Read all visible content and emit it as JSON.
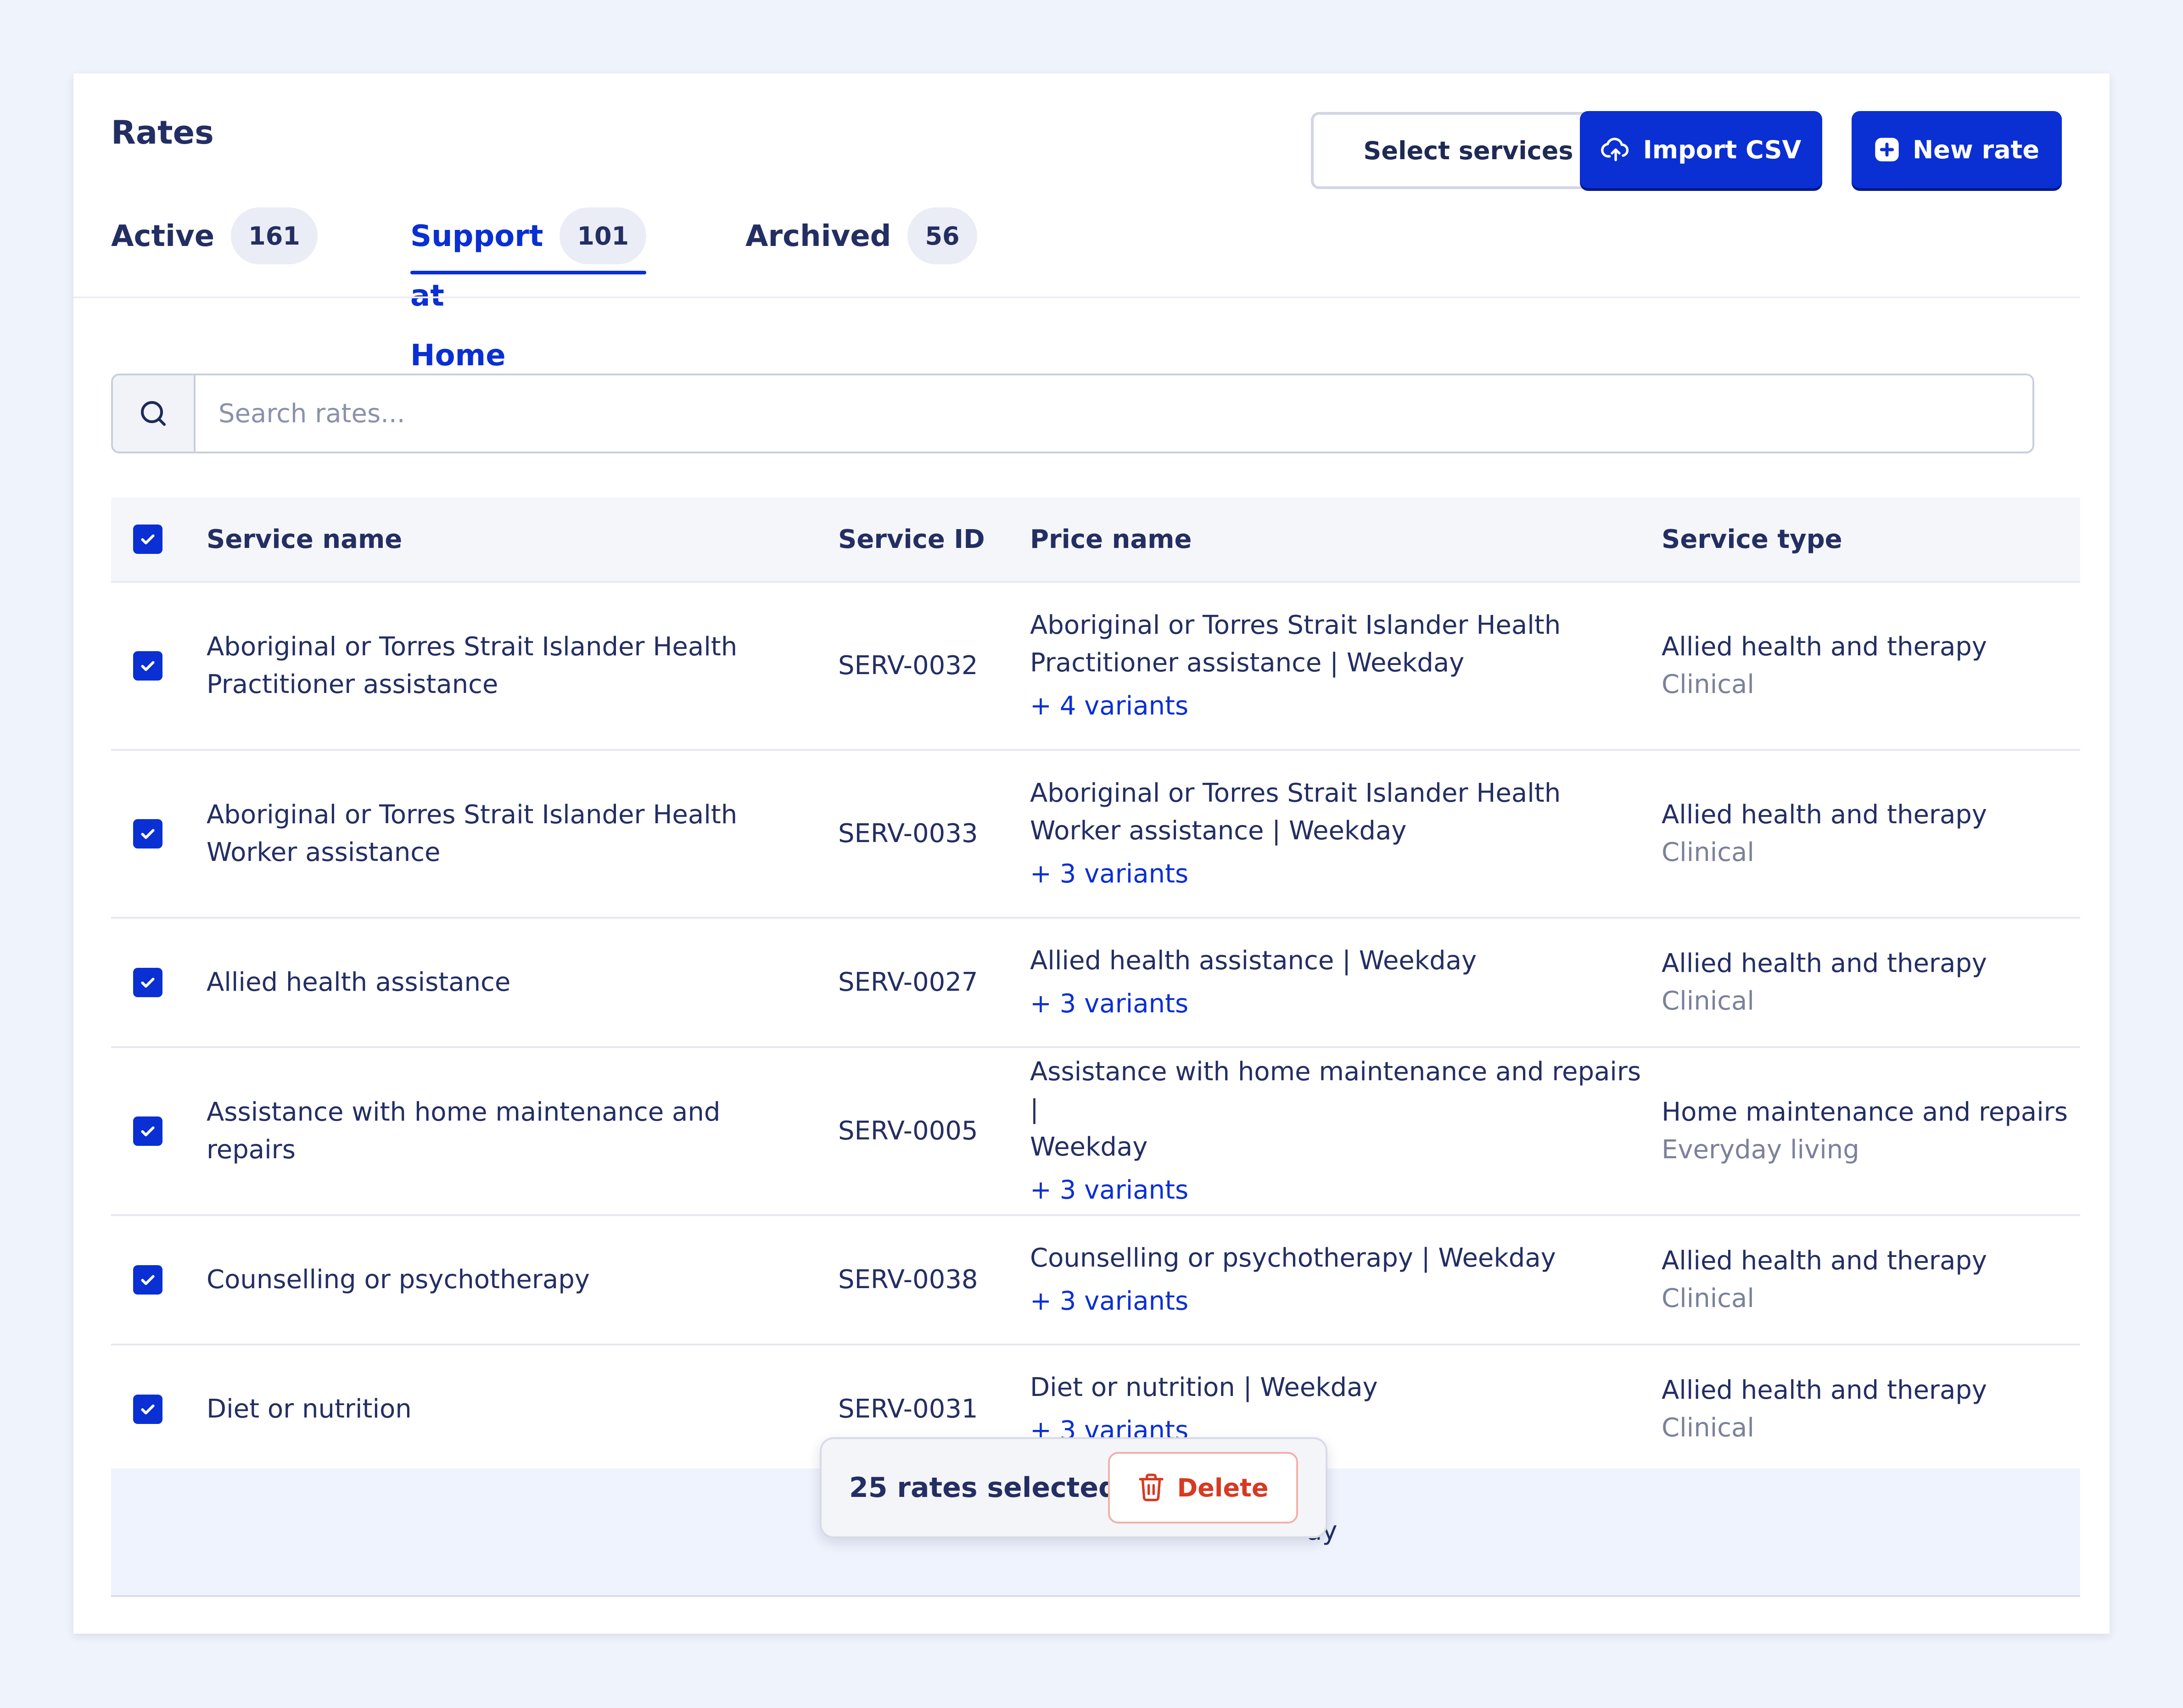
{
  "page": {
    "title": "Rates"
  },
  "header_actions": {
    "select_services_label": "Select services",
    "import_csv_label": "Import CSV",
    "new_rate_label": "New rate"
  },
  "tabs": [
    {
      "label": "Active",
      "count": "161",
      "selected": false
    },
    {
      "label": "Support at Home",
      "count": "101",
      "selected": true
    },
    {
      "label": "Archived",
      "count": "56",
      "selected": false
    }
  ],
  "search": {
    "placeholder": "Search rates...",
    "value": ""
  },
  "table": {
    "columns": {
      "service_name": "Service name",
      "service_id": "Service ID",
      "price_name": "Price name",
      "service_type": "Service type"
    },
    "header_checked": true,
    "rows": [
      {
        "checked": true,
        "service_name": [
          "Aboriginal or Torres Strait Islander Health",
          "Practitioner assistance"
        ],
        "service_id": "SERV-0032",
        "price_name": [
          "Aboriginal or Torres Strait Islander Health",
          "Practitioner assistance | Weekday"
        ],
        "variants": "+ 4 variants",
        "service_type": "Allied health and therapy",
        "service_subtype": "Clinical"
      },
      {
        "checked": true,
        "service_name": [
          "Aboriginal or Torres Strait Islander Health",
          "Worker assistance"
        ],
        "service_id": "SERV-0033",
        "price_name": [
          "Aboriginal or Torres Strait Islander Health",
          "Worker assistance | Weekday"
        ],
        "variants": "+ 3 variants",
        "service_type": "Allied health and therapy",
        "service_subtype": "Clinical"
      },
      {
        "checked": true,
        "service_name": [
          "Allied health assistance"
        ],
        "service_id": "SERV-0027",
        "price_name": [
          "Allied health assistance | Weekday"
        ],
        "variants": "+ 3 variants",
        "service_type": "Allied health and therapy",
        "service_subtype": "Clinical"
      },
      {
        "checked": true,
        "service_name": [
          "Assistance with home maintenance and repairs"
        ],
        "service_id": "SERV-0005",
        "price_name": [
          "Assistance with home maintenance and repairs |",
          "Weekday"
        ],
        "variants": "+ 3 variants",
        "service_type": "Home maintenance and repairs",
        "service_subtype": "Everyday living"
      },
      {
        "checked": true,
        "service_name": [
          "Counselling or psychotherapy"
        ],
        "service_id": "SERV-0038",
        "price_name": [
          "Counselling or psychotherapy | Weekday"
        ],
        "variants": "+ 3 variants",
        "service_type": "Allied health and therapy",
        "service_subtype": "Clinical"
      },
      {
        "checked": true,
        "service_name": [
          "Diet or nutrition"
        ],
        "service_id": "SERV-0031",
        "price_name": [
          "Diet or nutrition | Weekday"
        ],
        "variants": "+ 3 variants",
        "service_type": "Allied health and therapy",
        "service_subtype": "Clinical"
      }
    ],
    "partial_row_text": "ay"
  },
  "bulk_bar": {
    "selected_text": "25 rates selected",
    "delete_label": "Delete"
  },
  "colors": {
    "accent": "#0a2fd3",
    "danger": "#d63a23",
    "background": "#eff3fb"
  }
}
